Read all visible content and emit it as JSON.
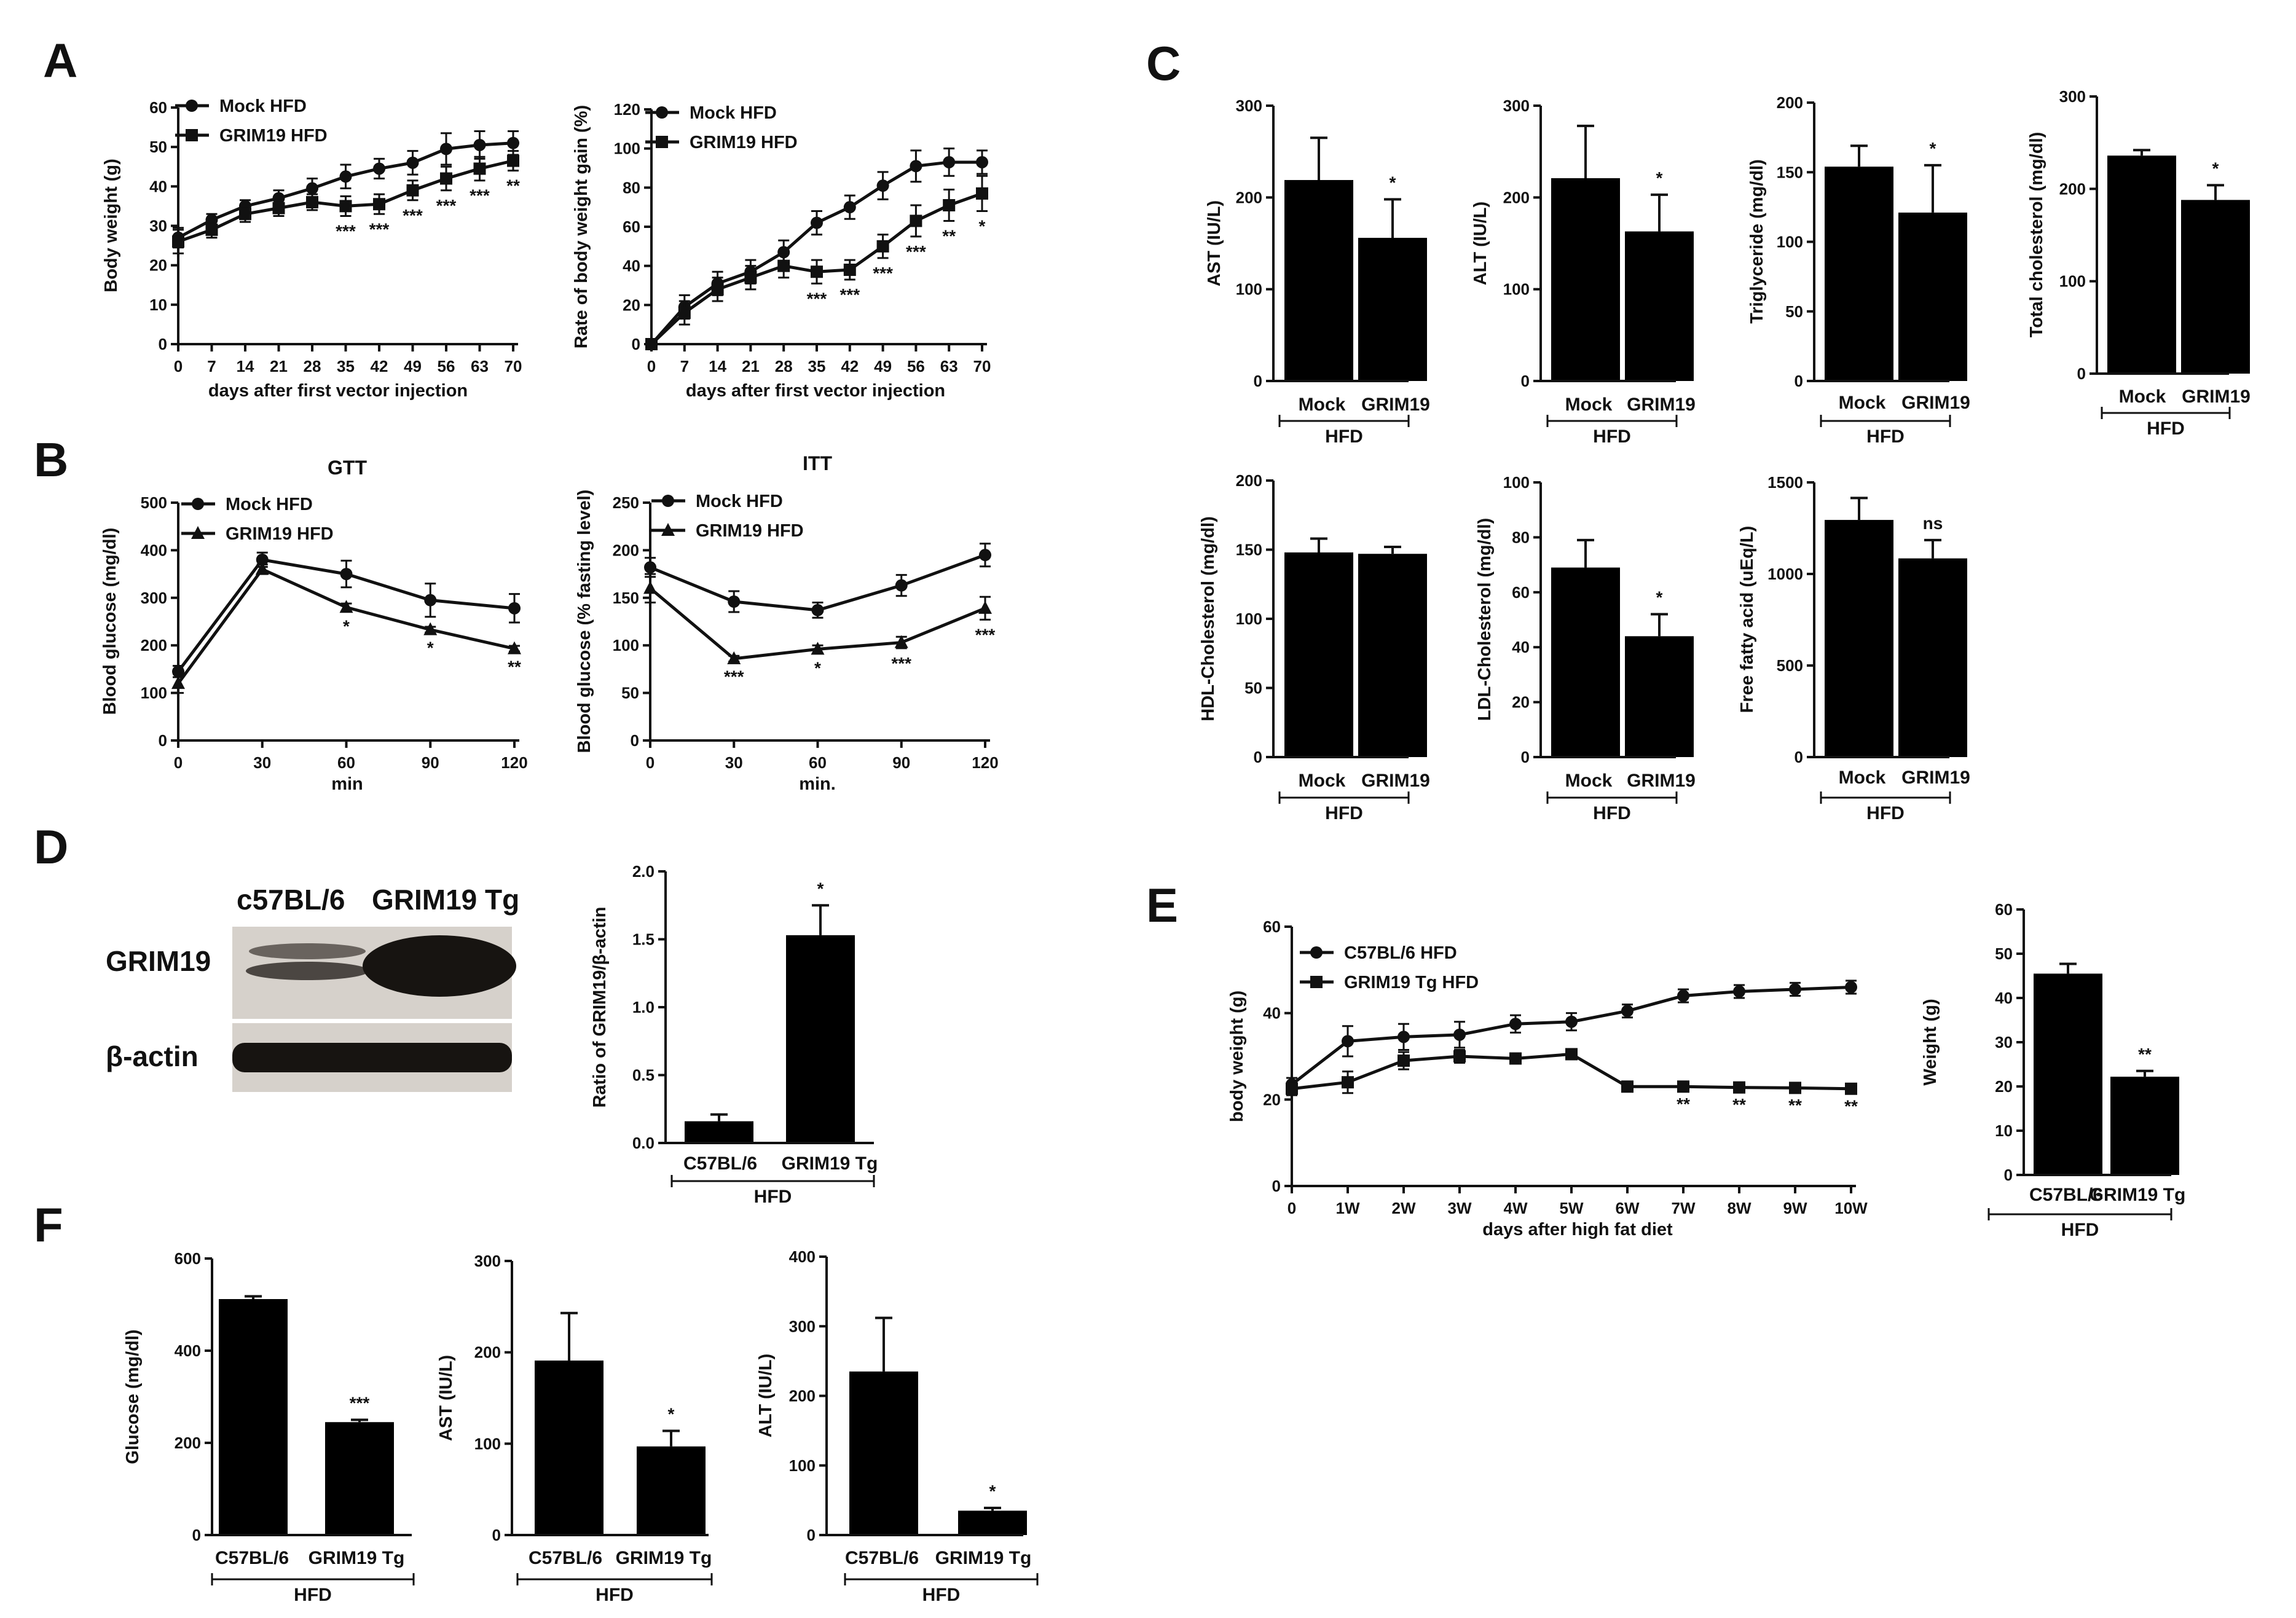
{
  "panels": {
    "A": "A",
    "B": "B",
    "C": "C",
    "D": "D",
    "E": "E",
    "F": "F"
  },
  "colors": {
    "ink": "#111111",
    "bar": "#000000",
    "blot_bg": "#d6d1cb",
    "band": "#171411"
  },
  "blot": {
    "lane_labels": [
      "c57BL/6",
      "GRIM19 Tg"
    ],
    "row_labels": [
      "GRIM19",
      "β-actin"
    ]
  },
  "chart_data": [
    {
      "id": "A1",
      "type": "line",
      "x": [
        0,
        7,
        14,
        21,
        28,
        35,
        42,
        49,
        56,
        63,
        70
      ],
      "xlabel": "days after first vector injection",
      "ylabel": "Body weight (g)",
      "ylim": [
        0,
        60
      ],
      "yticks": [
        0,
        10,
        20,
        30,
        40,
        50,
        60
      ],
      "legend": "top-left",
      "series": [
        {
          "name": "Mock HFD",
          "marker": "circle",
          "values": [
            27,
            31.5,
            35,
            37,
            39.5,
            42.5,
            44.5,
            46,
            49.5,
            50.5,
            51
          ],
          "err": [
            2.5,
            1.5,
            1.5,
            2,
            2.5,
            3,
            2.5,
            3,
            4,
            3.5,
            3
          ]
        },
        {
          "name": "GRIM19 HFD",
          "marker": "square",
          "values": [
            26,
            29,
            33,
            34.5,
            36,
            35,
            35.5,
            39,
            42,
            44.5,
            46.5
          ],
          "err": [
            3,
            2,
            2,
            2,
            2,
            2.5,
            2.5,
            2.5,
            3,
            3,
            2.5
          ]
        }
      ],
      "annotations": [
        {
          "x": 35,
          "text": "***"
        },
        {
          "x": 42,
          "text": "***"
        },
        {
          "x": 49,
          "text": "***"
        },
        {
          "x": 56,
          "text": "***"
        },
        {
          "x": 63,
          "text": "***"
        },
        {
          "x": 70,
          "text": "**"
        }
      ]
    },
    {
      "id": "A2",
      "type": "line",
      "x": [
        0,
        7,
        14,
        21,
        28,
        35,
        42,
        49,
        56,
        63,
        70
      ],
      "xlabel": "days after first vector injection",
      "ylabel": "Rate of body weight gain (%)",
      "ylim": [
        0,
        120
      ],
      "yticks": [
        0,
        20,
        40,
        60,
        80,
        100,
        120
      ],
      "legend": "top-left",
      "series": [
        {
          "name": "Mock HFD",
          "marker": "circle",
          "values": [
            0,
            19,
            31,
            37,
            47,
            62,
            70,
            81,
            91,
            93,
            93
          ],
          "err": [
            0,
            6,
            6,
            6,
            6,
            6,
            6,
            7,
            8,
            7,
            6
          ]
        },
        {
          "name": "GRIM19 HFD",
          "marker": "square",
          "values": [
            0,
            16,
            28,
            34,
            40,
            37,
            38,
            50,
            63,
            71,
            77
          ],
          "err": [
            0,
            6,
            6,
            6,
            6,
            6,
            5,
            6,
            8,
            8,
            9
          ]
        }
      ],
      "annotations": [
        {
          "x": 35,
          "text": "***"
        },
        {
          "x": 42,
          "text": "***"
        },
        {
          "x": 49,
          "text": "***"
        },
        {
          "x": 56,
          "text": "***"
        },
        {
          "x": 63,
          "text": "**"
        },
        {
          "x": 70,
          "text": "*"
        }
      ]
    },
    {
      "id": "B1",
      "type": "line",
      "title": "GTT",
      "x": [
        0,
        30,
        60,
        90,
        120
      ],
      "xlabel": "min",
      "ylabel": "Blood glucose (mg/dl)",
      "ylim": [
        0,
        500
      ],
      "yticks": [
        0,
        100,
        200,
        300,
        400,
        500
      ],
      "legend": "top-left",
      "series": [
        {
          "name": "Mock HFD",
          "marker": "circle",
          "values": [
            145,
            380,
            350,
            295,
            278
          ],
          "err": [
            12,
            15,
            28,
            35,
            30
          ]
        },
        {
          "name": "GRIM19 HFD",
          "marker": "triangle",
          "values": [
            120,
            360,
            280,
            233,
            193
          ],
          "err": [
            20,
            10,
            8,
            6,
            6
          ]
        }
      ],
      "annotations": [
        {
          "x": 60,
          "text": "*"
        },
        {
          "x": 90,
          "text": "*"
        },
        {
          "x": 120,
          "text": "**"
        }
      ]
    },
    {
      "id": "B2",
      "type": "line",
      "title": "ITT",
      "x": [
        0,
        30,
        60,
        90,
        120
      ],
      "xlabel": "min.",
      "ylabel": "Blood glucose (% fasting level)",
      "ylim": [
        0,
        250
      ],
      "yticks": [
        0,
        50,
        100,
        150,
        200,
        250
      ],
      "legend": "top-left",
      "series": [
        {
          "name": "Mock HFD",
          "marker": "circle",
          "values": [
            182,
            146,
            137,
            163,
            195
          ],
          "err": [
            10,
            11,
            8,
            11,
            12
          ]
        },
        {
          "name": "GRIM19 HFD",
          "marker": "triangle",
          "values": [
            160,
            86,
            96,
            103,
            139
          ],
          "err": [
            15,
            3,
            4,
            6,
            12
          ]
        }
      ],
      "annotations": [
        {
          "x": 30,
          "text": "***"
        },
        {
          "x": 60,
          "text": "*"
        },
        {
          "x": 90,
          "text": "***"
        },
        {
          "x": 120,
          "text": "***"
        }
      ]
    },
    {
      "id": "C1",
      "type": "bar",
      "categories": [
        "Mock",
        "GRIM19"
      ],
      "group_label": "HFD",
      "ylabel": "AST (IU/L)",
      "ylim": [
        0,
        300
      ],
      "yticks": [
        0,
        100,
        200,
        300
      ],
      "values": [
        219,
        156
      ],
      "err": [
        46,
        42
      ],
      "annotations": [
        "",
        "*"
      ]
    },
    {
      "id": "C2",
      "type": "bar",
      "categories": [
        "Mock",
        "GRIM19"
      ],
      "group_label": "HFD",
      "ylabel": "ALT (IU/L)",
      "ylim": [
        0,
        300
      ],
      "yticks": [
        0,
        100,
        200,
        300
      ],
      "values": [
        221,
        163
      ],
      "err": [
        57,
        40
      ],
      "annotations": [
        "",
        "*"
      ]
    },
    {
      "id": "C3",
      "type": "bar",
      "categories": [
        "Mock",
        "GRIM19"
      ],
      "group_label": "HFD",
      "ylabel": "Triglyceride (mg/dl)",
      "ylim": [
        0,
        200
      ],
      "yticks": [
        0,
        50,
        100,
        150,
        200
      ],
      "values": [
        154,
        121
      ],
      "err": [
        15,
        34
      ],
      "annotations": [
        "",
        "*"
      ]
    },
    {
      "id": "C4",
      "type": "bar",
      "categories": [
        "Mock",
        "GRIM19"
      ],
      "group_label": "HFD",
      "ylabel": "Total cholesterol (mg/dl)",
      "ylim": [
        0,
        300
      ],
      "yticks": [
        0,
        100,
        200,
        300
      ],
      "values": [
        236,
        188
      ],
      "err": [
        6,
        16
      ],
      "annotations": [
        "",
        "*"
      ]
    },
    {
      "id": "C5",
      "type": "bar",
      "categories": [
        "Mock",
        "GRIM19"
      ],
      "group_label": "HFD",
      "ylabel": "HDL-Cholesterol (mg/dl)",
      "ylim": [
        0,
        200
      ],
      "yticks": [
        0,
        50,
        100,
        150,
        200
      ],
      "values": [
        148,
        147
      ],
      "err": [
        10,
        5
      ],
      "annotations": [
        "",
        ""
      ]
    },
    {
      "id": "C6",
      "type": "bar",
      "categories": [
        "Mock",
        "GRIM19"
      ],
      "group_label": "HFD",
      "ylabel": "LDL-Cholesterol (mg/dl)",
      "ylim": [
        0,
        100
      ],
      "yticks": [
        0,
        20,
        40,
        60,
        80,
        100
      ],
      "values": [
        69,
        44
      ],
      "err": [
        10,
        8
      ],
      "annotations": [
        "",
        "*"
      ]
    },
    {
      "id": "C7",
      "type": "bar",
      "categories": [
        "Mock",
        "GRIM19"
      ],
      "group_label": "HFD",
      "ylabel": "Free fatty acid (uEq/L)",
      "ylim": [
        0,
        1500
      ],
      "yticks": [
        0,
        500,
        1000,
        1500
      ],
      "values": [
        1295,
        1085
      ],
      "err": [
        120,
        100
      ],
      "annotations": [
        "",
        "ns"
      ]
    },
    {
      "id": "D",
      "type": "bar",
      "categories": [
        "C57BL/6",
        "GRIM19 Tg"
      ],
      "group_label": "HFD",
      "ylabel": "Ratio of GRIM19/β-actin",
      "ylim": [
        0,
        2.0
      ],
      "yticks": [
        "0.0",
        "0.5",
        "1.0",
        "1.5",
        "2.0"
      ],
      "values": [
        0.16,
        1.53
      ],
      "err": [
        0.05,
        0.22
      ],
      "annotations": [
        "",
        "*"
      ]
    },
    {
      "id": "E1",
      "type": "line",
      "x": [
        "0",
        "1W",
        "2W",
        "3W",
        "4W",
        "5W",
        "6W",
        "7W",
        "8W",
        "9W",
        "10W"
      ],
      "xlabel": "days after high fat diet",
      "ylabel": "body weight (g)",
      "ylim": [
        0,
        60
      ],
      "yticks": [
        0,
        20,
        40,
        60
      ],
      "legend": "top-left",
      "series": [
        {
          "name": "C57BL/6 HFD",
          "marker": "circle",
          "values": [
            23.5,
            33.5,
            34.5,
            35,
            37.5,
            38,
            40.5,
            44,
            45,
            45.5,
            46
          ],
          "err": [
            1.5,
            3.5,
            3,
            3,
            2,
            2,
            1.5,
            1.5,
            1.5,
            1.5,
            1.5
          ]
        },
        {
          "name": "GRIM19 Tg HFD",
          "marker": "square",
          "values": [
            22.5,
            24,
            29,
            30,
            29.5,
            30.5,
            23,
            23,
            22.8,
            22.7,
            22.5
          ],
          "err": [
            1.5,
            2.5,
            2,
            1.5,
            1,
            1,
            0.5,
            0.5,
            0.5,
            0.5,
            0.5
          ]
        }
      ],
      "annotations": [
        {
          "x": "7W",
          "text": "**"
        },
        {
          "x": "8W",
          "text": "**"
        },
        {
          "x": "9W",
          "text": "**"
        },
        {
          "x": "10W",
          "text": "**"
        }
      ]
    },
    {
      "id": "E2",
      "type": "bar",
      "categories": [
        "C57BL/6",
        "GRIM19 Tg"
      ],
      "group_label": "HFD",
      "ylabel": "Weight (g)",
      "ylim": [
        0,
        60
      ],
      "yticks": [
        0,
        10,
        20,
        30,
        40,
        50,
        60
      ],
      "values": [
        45.5,
        22.2
      ],
      "err": [
        2.2,
        1.3
      ],
      "annotations": [
        "",
        "**"
      ]
    },
    {
      "id": "F1",
      "type": "bar",
      "categories": [
        "C57BL/6",
        "GRIM19 Tg"
      ],
      "group_label": "HFD",
      "ylabel": "Glucose (mg/dl)",
      "ylim": [
        0,
        600
      ],
      "yticks": [
        0,
        200,
        400,
        600
      ],
      "values": [
        512,
        245
      ],
      "err": [
        6,
        5
      ],
      "annotations": [
        "",
        "***"
      ]
    },
    {
      "id": "F2",
      "type": "bar",
      "categories": [
        "C57BL/6",
        "GRIM19 Tg"
      ],
      "group_label": "HFD",
      "ylabel": "AST (IU/L)",
      "ylim": [
        0,
        300
      ],
      "yticks": [
        0,
        100,
        200,
        300
      ],
      "values": [
        191,
        97
      ],
      "err": [
        52,
        17
      ],
      "annotations": [
        "",
        "*"
      ]
    },
    {
      "id": "F3",
      "type": "bar",
      "categories": [
        "C57BL/6",
        "GRIM19 Tg"
      ],
      "group_label": "HFD",
      "ylabel": "ALT (IU/L)",
      "ylim": [
        0,
        400
      ],
      "yticks": [
        0,
        100,
        200,
        300,
        400
      ],
      "values": [
        235,
        35
      ],
      "err": [
        77,
        4
      ],
      "annotations": [
        "",
        "*"
      ]
    }
  ]
}
